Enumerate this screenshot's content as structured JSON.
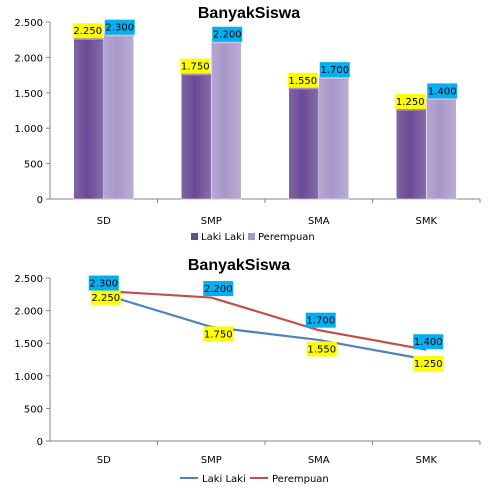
{
  "chart_data": [
    {
      "type": "bar",
      "title": "BanyakSiswa",
      "categories": [
        "SD",
        "SMP",
        "SMA",
        "SMK"
      ],
      "series": [
        {
          "name": "Laki Laki",
          "values": [
            2250,
            1750,
            1550,
            1250
          ],
          "labels": [
            "2.250",
            "1.750",
            "1.550",
            "1.250"
          ],
          "color": "#6a4a95"
        },
        {
          "name": "Perempuan",
          "values": [
            2300,
            2200,
            1700,
            1400
          ],
          "labels": [
            "2.300",
            "2.200",
            "1.700",
            "1.400"
          ],
          "color": "#a898c9"
        }
      ],
      "ylim": [
        0,
        2500
      ],
      "yticks": [
        0,
        500,
        1000,
        1500,
        2000,
        2500
      ],
      "yticklabels": [
        "0",
        "500",
        "1.000",
        "1.500",
        "2.000",
        "2.500"
      ],
      "label_colors": {
        "Laki Laki": "#ffff00",
        "Perempuan": "#00b0f0"
      },
      "legend_position": "bottom",
      "grid": false
    },
    {
      "type": "line",
      "title": "BanyakSiswa",
      "categories": [
        "SD",
        "SMP",
        "SMA",
        "SMK"
      ],
      "series": [
        {
          "name": "Laki Laki",
          "values": [
            2250,
            1750,
            1550,
            1250
          ],
          "labels": [
            "2.250",
            "1.750",
            "1.550",
            "1.250"
          ],
          "color": "#4f81bd"
        },
        {
          "name": "Perempuan",
          "values": [
            2300,
            2200,
            1700,
            1400
          ],
          "labels": [
            "2.300",
            "2.200",
            "1.700",
            "1.400"
          ],
          "color": "#c0504d"
        }
      ],
      "ylim": [
        0,
        2500
      ],
      "yticks": [
        0,
        500,
        1000,
        1500,
        2000,
        2500
      ],
      "yticklabels": [
        "0",
        "500",
        "1.000",
        "1.500",
        "2.000",
        "2.500"
      ],
      "label_colors": {
        "Laki Laki": "#ffff00",
        "Perempuan": "#00b0f0"
      },
      "legend_position": "bottom",
      "grid": false
    }
  ]
}
